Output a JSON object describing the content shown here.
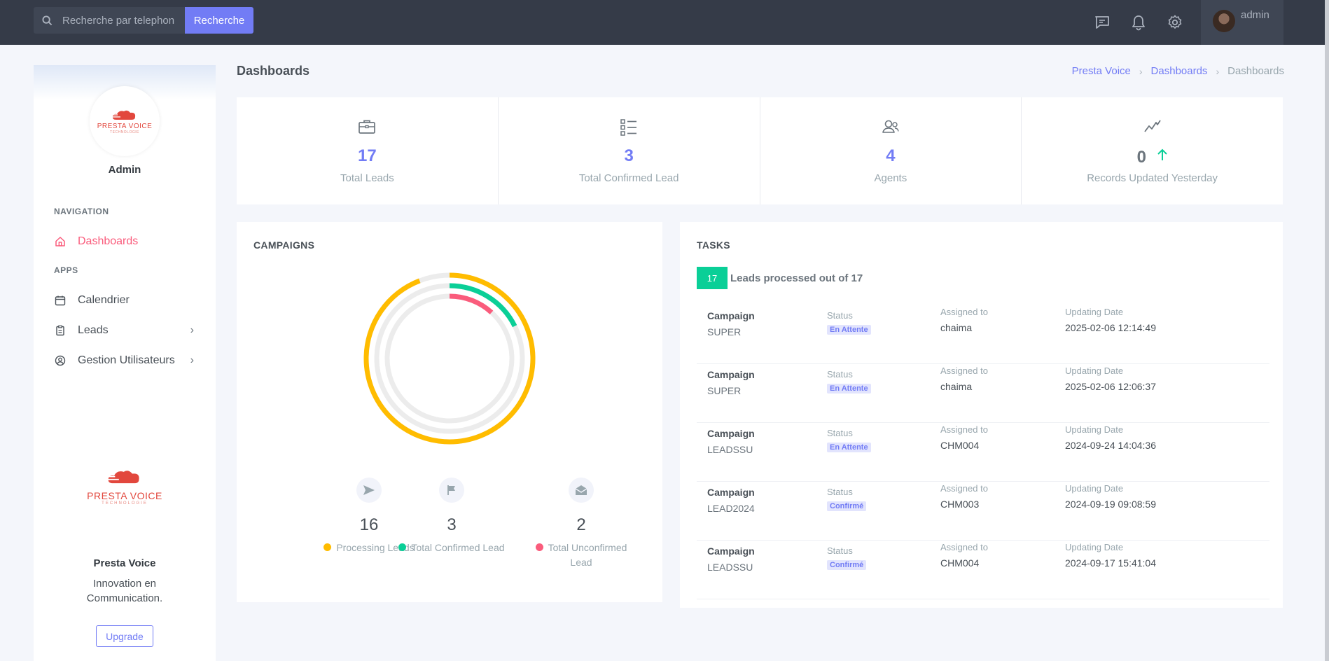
{
  "topbar": {
    "search_placeholder": "Recherche par telephone",
    "search_button": "Recherche",
    "user_name": "admin"
  },
  "sidebar": {
    "profile_name": "Admin",
    "logo_text": "PRESTA VOICE",
    "logo_subtext": "TECHNOLOGIE",
    "nav_title": "NAVIGATION",
    "apps_title": "APPS",
    "items": [
      {
        "label": "Dashboards",
        "icon": "home-icon"
      },
      {
        "label": "Calendrier",
        "icon": "calendar-icon"
      },
      {
        "label": "Leads",
        "icon": "clipboard-icon"
      },
      {
        "label": "Gestion Utilisateurs",
        "icon": "user-circle-icon"
      }
    ],
    "brand": "Presta Voice",
    "slogan": "Innovation en Communication.",
    "upgrade": "Upgrade"
  },
  "header": {
    "title": "Dashboards",
    "breadcrumb": [
      "Presta Voice",
      "Dashboards",
      "Dashboards"
    ]
  },
  "stats": [
    {
      "value": "17",
      "label": "Total Leads",
      "icon": "briefcase-icon"
    },
    {
      "value": "3",
      "label": "Total Confirmed Lead",
      "icon": "list-icon"
    },
    {
      "value": "4",
      "label": "Agents",
      "icon": "users-icon"
    },
    {
      "value": "0",
      "label": "Records Updated Yesterday",
      "icon": "trend-icon"
    }
  ],
  "campaigns": {
    "title": "CAMPAIGNS",
    "legend": [
      {
        "value": "16",
        "label": "Processing Leads",
        "color": "#ffbc00",
        "icon": "send-icon"
      },
      {
        "value": "3",
        "label": "Total Confirmed Lead",
        "color": "#0acf97",
        "icon": "flag-icon"
      },
      {
        "value": "2",
        "label": "Total Unconfirmed Lead",
        "color": "#fa5c7c",
        "icon": "mail-open-icon"
      }
    ]
  },
  "chart_data": {
    "type": "radialBar",
    "series": [
      {
        "name": "Processing Leads",
        "value": 16,
        "max": 17,
        "color": "#ffbc00"
      },
      {
        "name": "Total Confirmed Lead",
        "value": 3,
        "max": 17,
        "color": "#0acf97"
      },
      {
        "name": "Total Unconfirmed Lead",
        "value": 2,
        "max": 17,
        "color": "#fa5c7c"
      }
    ]
  },
  "tasks": {
    "title": "TASKS",
    "badge": "17",
    "summary": "Leads processed out of 17",
    "col_campaign": "Campaign",
    "col_status": "Status",
    "col_assigned": "Assigned to",
    "col_date": "Updating Date",
    "rows": [
      {
        "campaign": "SUPER",
        "status": "En Attente",
        "assigned": "chaima",
        "date": "2025-02-06 12:14:49"
      },
      {
        "campaign": "SUPER",
        "status": "En Attente",
        "assigned": "chaima",
        "date": "2025-02-06 12:06:37"
      },
      {
        "campaign": "LEADSSU",
        "status": "En Attente",
        "assigned": "CHM004",
        "date": "2024-09-24 14:04:36"
      },
      {
        "campaign": "LEAD2024",
        "status": "Confirmé",
        "assigned": "CHM003",
        "date": "2024-09-19 09:08:59"
      },
      {
        "campaign": "LEADSSU",
        "status": "Confirmé",
        "assigned": "CHM004",
        "date": "2024-09-17 15:41:04"
      }
    ]
  }
}
